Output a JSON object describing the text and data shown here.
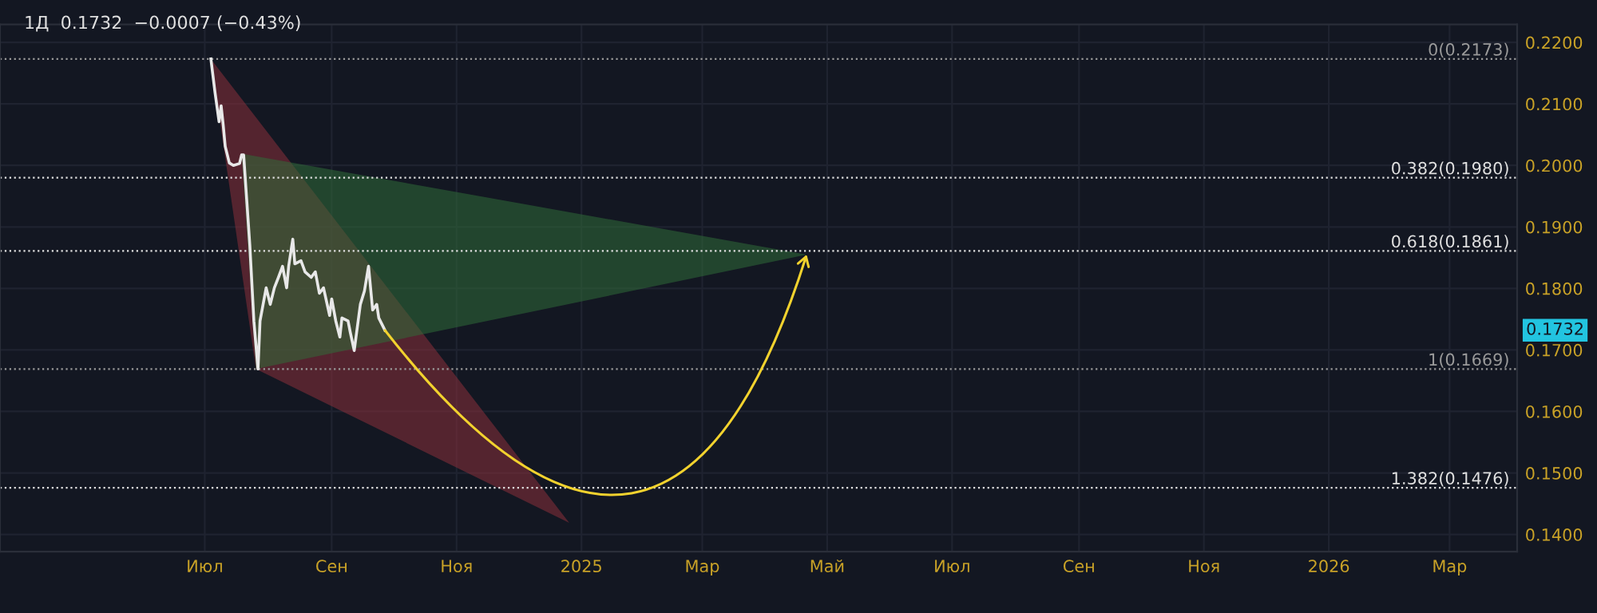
{
  "chart_data": {
    "type": "line",
    "title": "1Д  0.1732  −0.0007 (−0.43%)",
    "xlim": [
      "2024-03-23",
      "2026-04-03"
    ],
    "xticks": [
      {
        "value": "2024-07-01",
        "label": "Июл"
      },
      {
        "value": "2024-09-01",
        "label": "Сен"
      },
      {
        "value": "2024-11-01",
        "label": "Ноя"
      },
      {
        "value": "2025-01-01",
        "label": "2025"
      },
      {
        "value": "2025-03-01",
        "label": "Мар"
      },
      {
        "value": "2025-05-01",
        "label": "Май"
      },
      {
        "value": "2025-07-01",
        "label": "Июл"
      },
      {
        "value": "2025-09-01",
        "label": "Сен"
      },
      {
        "value": "2025-11-01",
        "label": "Ноя"
      },
      {
        "value": "2026-01-01",
        "label": "2026"
      },
      {
        "value": "2026-03-01",
        "label": "Мар"
      }
    ],
    "ylim": [
      0.1372,
      0.2229
    ],
    "yticks": [
      {
        "value": 0.14,
        "label": "0.1400"
      },
      {
        "value": 0.15,
        "label": "0.1500"
      },
      {
        "value": 0.16,
        "label": "0.1600"
      },
      {
        "value": 0.17,
        "label": "0.1700"
      },
      {
        "value": 0.18,
        "label": "0.1800"
      },
      {
        "value": 0.19,
        "label": "0.1900"
      },
      {
        "value": 0.2,
        "label": "0.2000"
      },
      {
        "value": 0.21,
        "label": "0.2100"
      },
      {
        "value": 0.22,
        "label": "0.2200"
      }
    ],
    "grid": true,
    "legend": false,
    "series": [
      {
        "type": "area",
        "color": "#8a2f3a",
        "x": [
          "2024-07-04",
          "2024-07-26",
          "2024-12-26"
        ],
        "values": [
          null,
          null,
          null
        ],
        "lower": [
          0.2173,
          0.1669,
          0.1419
        ],
        "upper": [
          0.2173,
          0.2078,
          0.1419
        ]
      },
      {
        "type": "area",
        "color": "#2f6b38",
        "x": [
          "2024-07-19",
          "2024-07-26",
          "2025-04-21"
        ],
        "values": [
          null,
          null,
          null
        ],
        "lower": [
          0.2019,
          0.1669,
          0.1855
        ],
        "upper": [
          0.2019,
          0.2015,
          0.1855
        ]
      },
      {
        "color": "#e8e8e8",
        "x": [
          "2024-07-04",
          "2024-07-06",
          "2024-07-08",
          "2024-07-09",
          "2024-07-10",
          "2024-07-11",
          "2024-07-13",
          "2024-07-15",
          "2024-07-18",
          "2024-07-19",
          "2024-07-20",
          "2024-07-23",
          "2024-07-25",
          "2024-07-27",
          "2024-07-28",
          "2024-07-31",
          "2024-08-02",
          "2024-08-04",
          "2024-08-06",
          "2024-08-08",
          "2024-08-10",
          "2024-08-11",
          "2024-08-13",
          "2024-08-14",
          "2024-08-17",
          "2024-08-19",
          "2024-08-22",
          "2024-08-24",
          "2024-08-26",
          "2024-08-28",
          "2024-08-31",
          "2024-09-01",
          "2024-09-03",
          "2024-09-05",
          "2024-09-06",
          "2024-09-09",
          "2024-09-10",
          "2024-09-12",
          "2024-09-15",
          "2024-09-17",
          "2024-09-19",
          "2024-09-21",
          "2024-09-23",
          "2024-09-24",
          "2024-09-27"
        ],
        "values": [
          0.2173,
          0.2119,
          0.2071,
          0.2097,
          0.2066,
          0.2031,
          0.2004,
          0.2,
          0.2003,
          0.2017,
          0.2017,
          0.1871,
          0.1747,
          0.1669,
          0.1747,
          0.1801,
          0.1774,
          0.1801,
          0.1818,
          0.1836,
          0.1801,
          0.1836,
          0.188,
          0.184,
          0.1845,
          0.1827,
          0.1818,
          0.1827,
          0.1792,
          0.1801,
          0.1756,
          0.1783,
          0.1747,
          0.1721,
          0.1752,
          0.1747,
          0.173,
          0.1699,
          0.1774,
          0.1796,
          0.1836,
          0.1765,
          0.1774,
          0.1752,
          0.1732
        ]
      }
    ],
    "ref_lines": [
      {
        "axis": "y",
        "value": 0.2173,
        "label": "0(0.2173)",
        "color": "#9a9a9a",
        "line_style": "dotted"
      },
      {
        "axis": "y",
        "value": 0.198,
        "label": "0.382(0.1980)",
        "color": "#e0e0e0",
        "line_style": "dotted"
      },
      {
        "axis": "y",
        "value": 0.1861,
        "label": "0.618(0.1861)",
        "color": "#e0e0e0",
        "line_style": "dotted"
      },
      {
        "axis": "y",
        "value": 0.1669,
        "label": "1(0.1669)",
        "color": "#9a9a9a",
        "line_style": "dotted"
      },
      {
        "axis": "y",
        "value": 0.1476,
        "label": "1.382(0.1476)",
        "color": "#e0e0e0",
        "line_style": "dotted"
      }
    ],
    "annotations": [
      "0.1732"
    ]
  }
}
